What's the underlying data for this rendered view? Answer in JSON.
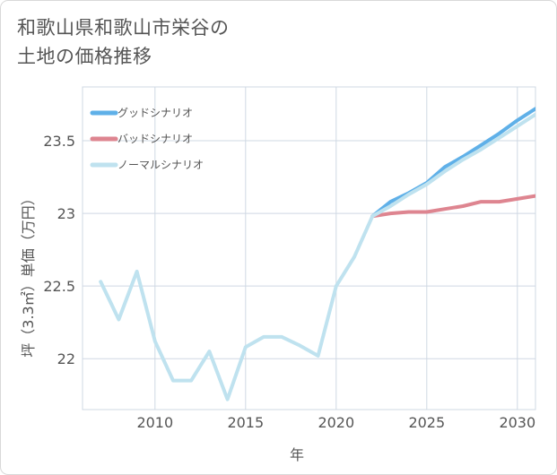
{
  "title": {
    "line1": "和歌山県和歌山市栄谷の",
    "line2": "土地の価格推移"
  },
  "colors": {
    "good": "#5fb0e8",
    "bad": "#de8590",
    "normal": "#bfe2ef",
    "grid": "#cfd8e3",
    "axis_text": "#555555"
  },
  "chart_data": {
    "type": "line",
    "xlabel": "年",
    "ylabel": "坪（3.3㎡）単価（万円）",
    "xlim": [
      2006,
      2031
    ],
    "ylim": [
      21.65,
      23.87
    ],
    "x_ticks": [
      2010,
      2015,
      2020,
      2025,
      2030
    ],
    "y_ticks": [
      22,
      22.5,
      23,
      23.5
    ],
    "x_tick_labels": [
      "2010",
      "2015",
      "2020",
      "2025",
      "2030"
    ],
    "y_tick_labels": [
      "22",
      "22.5",
      "23",
      "23.5"
    ],
    "grid": true,
    "legend_position": "top-left",
    "series": [
      {
        "name": "グッドシナリオ",
        "color": "#5fb0e8",
        "x": [
          2022,
          2023,
          2024,
          2025,
          2026,
          2027,
          2028,
          2029,
          2030,
          2031
        ],
        "y": [
          22.98,
          23.08,
          23.14,
          23.21,
          23.32,
          23.39,
          23.47,
          23.55,
          23.64,
          23.72
        ]
      },
      {
        "name": "バッドシナリオ",
        "color": "#de8590",
        "x": [
          2022,
          2023,
          2024,
          2025,
          2026,
          2027,
          2028,
          2029,
          2030,
          2031
        ],
        "y": [
          22.98,
          23.0,
          23.01,
          23.01,
          23.03,
          23.05,
          23.08,
          23.08,
          23.1,
          23.12
        ]
      },
      {
        "name": "ノーマルシナリオ",
        "color": "#bfe2ef",
        "x": [
          2007,
          2008,
          2009,
          2010,
          2011,
          2012,
          2013,
          2014,
          2015,
          2016,
          2017,
          2018,
          2019,
          2020,
          2021,
          2022,
          2023,
          2024,
          2025,
          2026,
          2027,
          2028,
          2029,
          2030,
          2031
        ],
        "y": [
          22.53,
          22.27,
          22.6,
          22.12,
          21.85,
          21.85,
          22.05,
          21.72,
          22.08,
          22.15,
          22.15,
          22.09,
          22.02,
          22.5,
          22.7,
          22.98,
          23.05,
          23.13,
          23.2,
          23.29,
          23.37,
          23.44,
          23.52,
          23.6,
          23.68
        ]
      }
    ]
  }
}
